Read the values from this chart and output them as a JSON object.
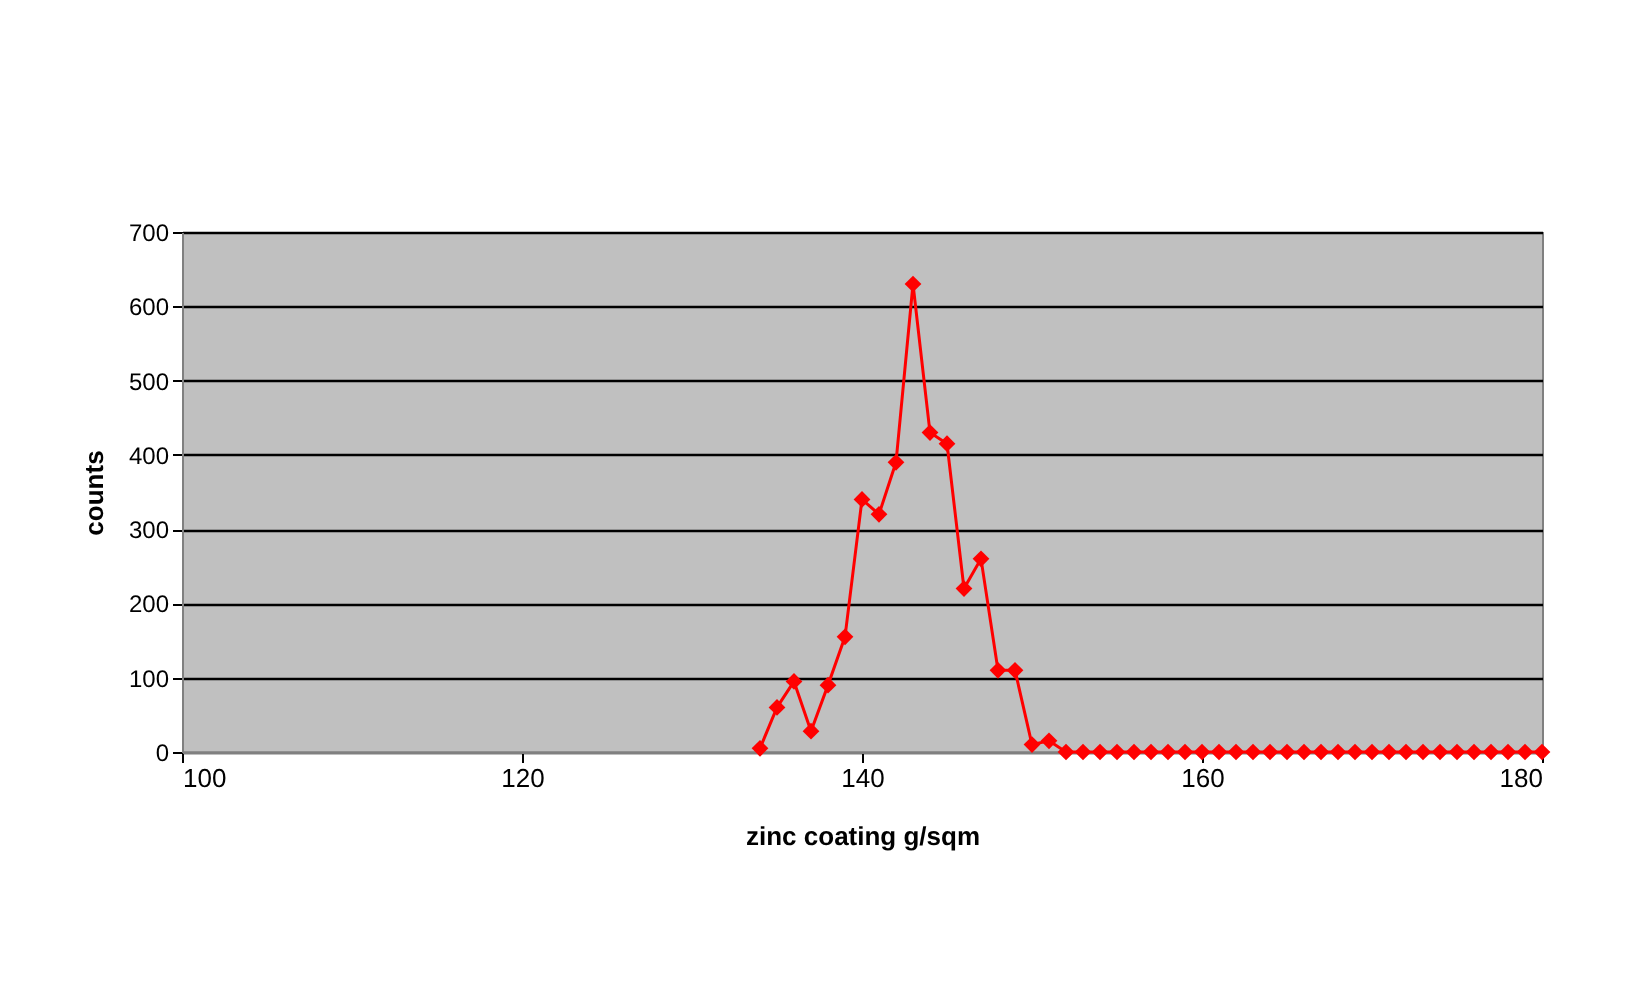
{
  "chart_data": {
    "type": "line",
    "xlabel": "zinc coating g/sqm",
    "ylabel": "counts",
    "x": [
      134,
      135,
      136,
      137,
      138,
      139,
      140,
      141,
      142,
      143,
      144,
      145,
      146,
      147,
      148,
      149,
      150,
      151,
      152,
      153,
      154,
      155,
      156,
      157,
      158,
      159,
      160,
      161,
      162,
      163,
      164,
      165,
      166,
      167,
      168,
      169,
      170,
      171,
      172,
      173,
      174,
      175,
      176,
      177,
      178,
      179,
      180
    ],
    "series": [
      {
        "color": "#ff0000",
        "values": [
          5,
          60,
          95,
          28,
          90,
          155,
          340,
          320,
          390,
          630,
          430,
          415,
          220,
          260,
          110,
          110,
          10,
          15,
          0,
          0,
          0,
          0,
          0,
          0,
          0,
          0,
          0,
          0,
          0,
          0,
          0,
          0,
          0,
          0,
          0,
          0,
          0,
          0,
          0,
          0,
          0,
          0,
          0,
          0,
          0,
          0,
          0
        ]
      }
    ],
    "xlim": [
      100,
      180
    ],
    "xticks": [
      100,
      120,
      140,
      160,
      180
    ],
    "ylim": [
      0,
      700
    ],
    "yticks": [
      0,
      100,
      200,
      300,
      400,
      500,
      600,
      700
    ],
    "grid": "y",
    "marker": "diamond",
    "line_style": "solid"
  }
}
